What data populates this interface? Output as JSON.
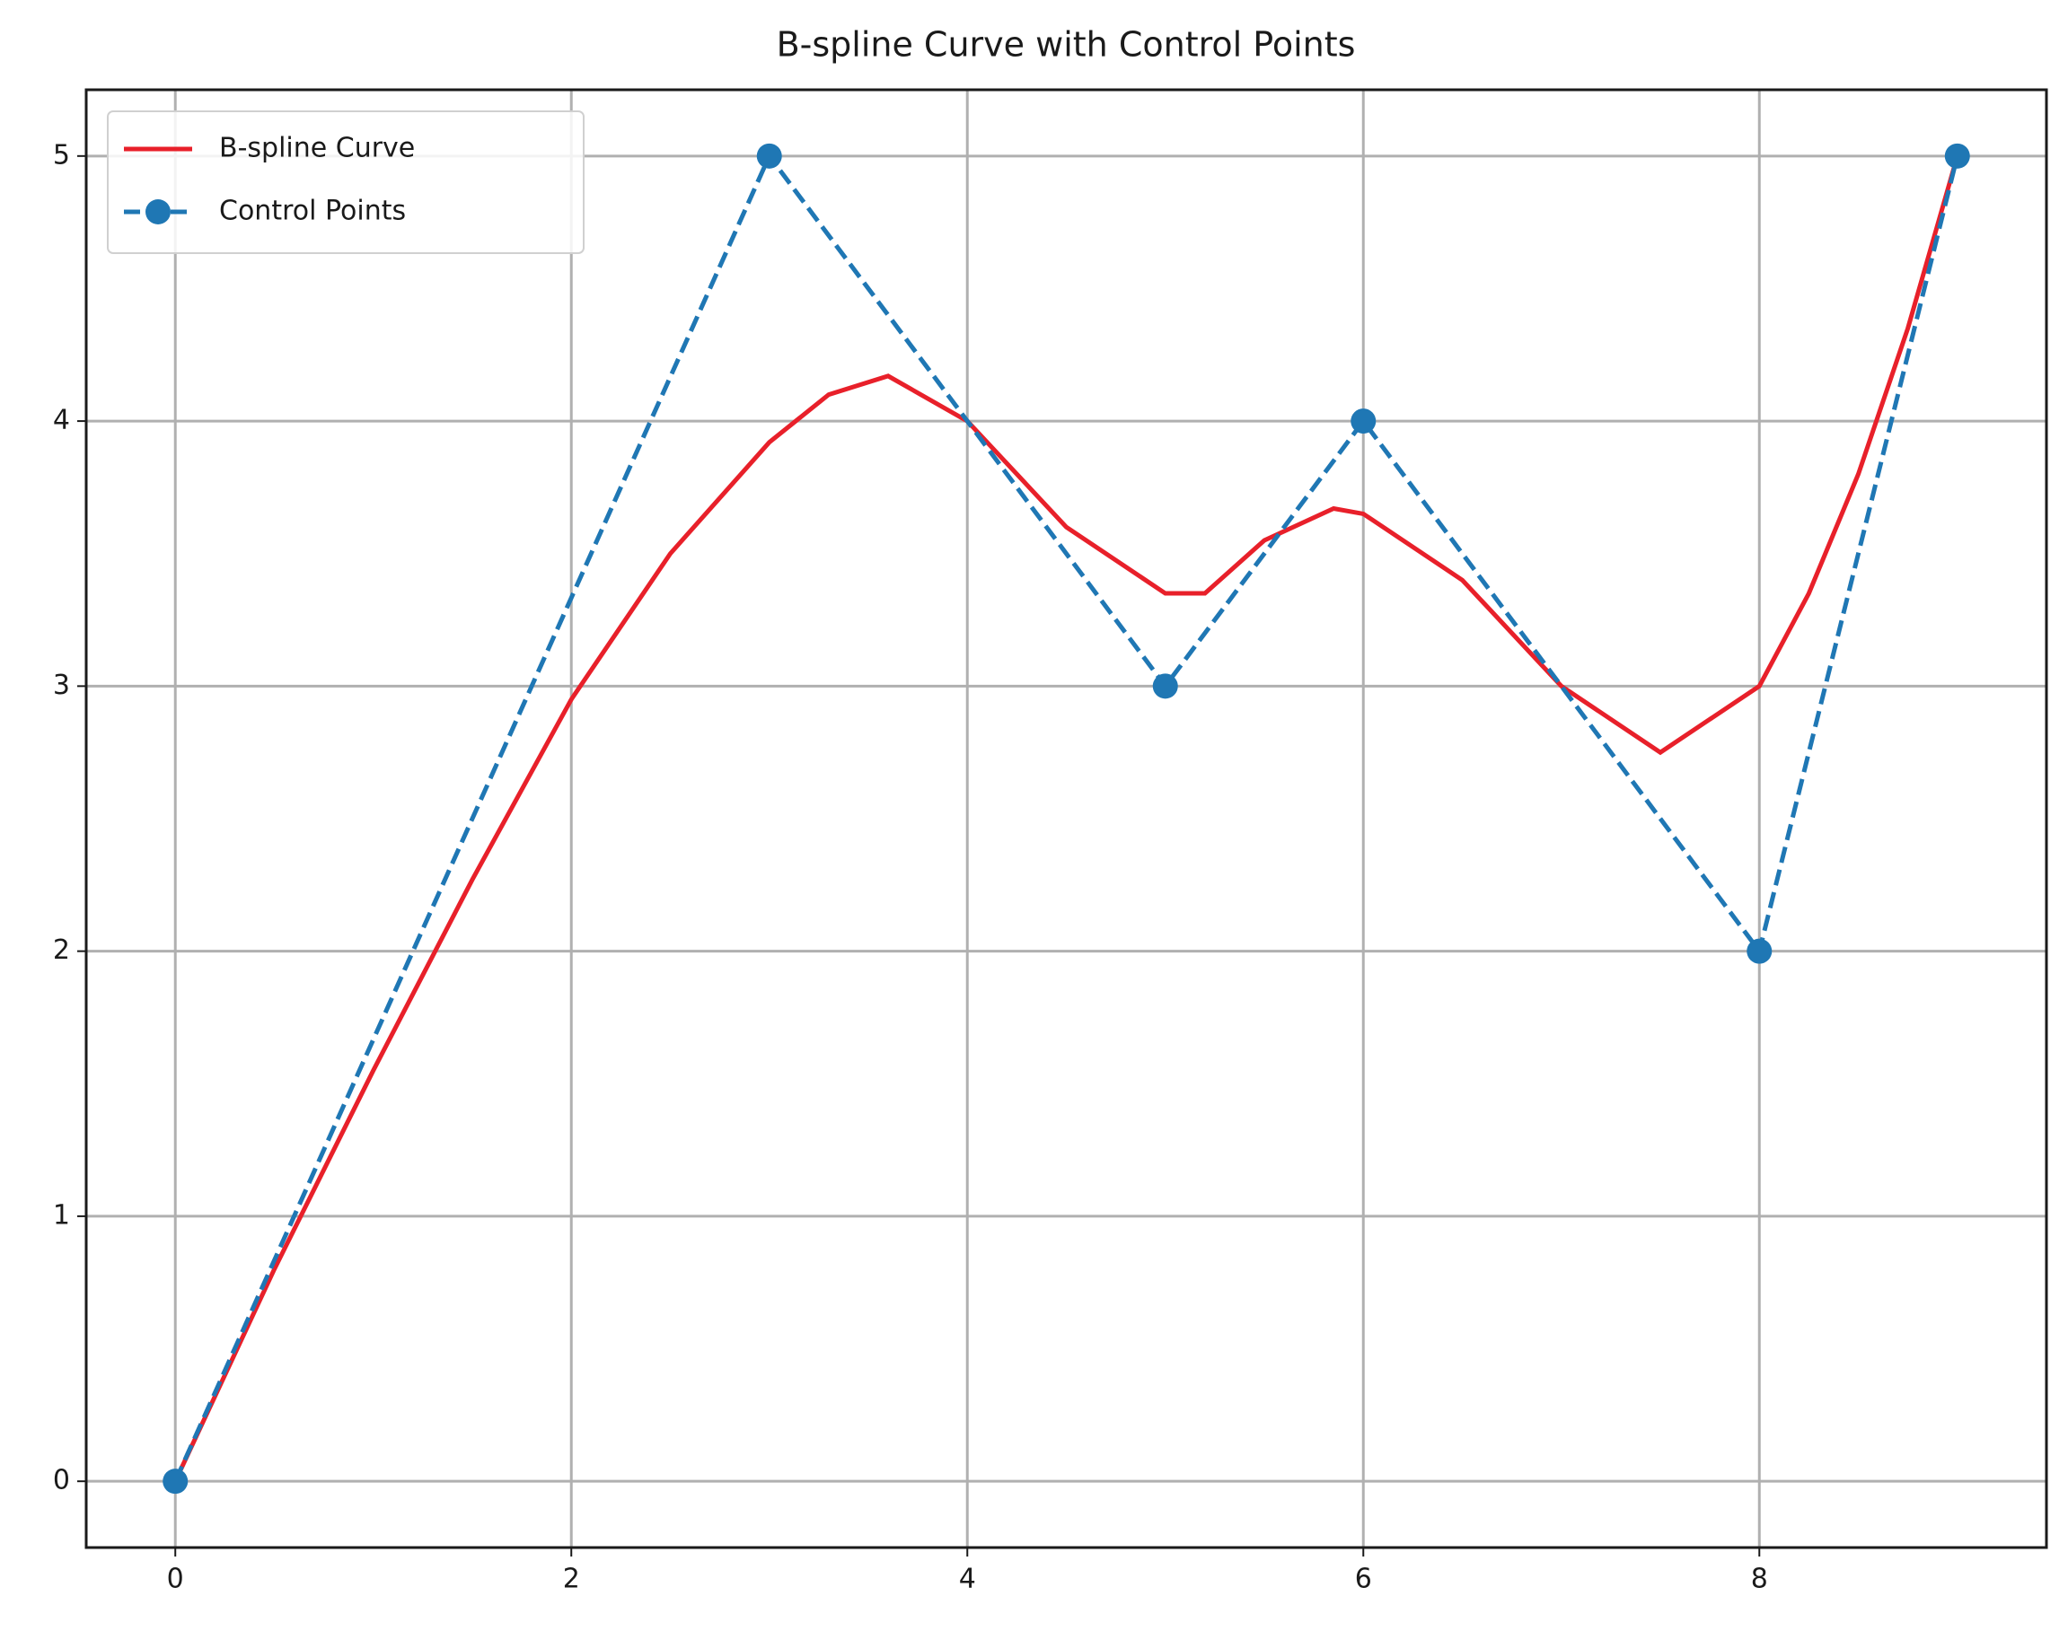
{
  "chart_data": {
    "type": "line",
    "title": "B-spline Curve with Control Points",
    "series": [
      {
        "name": "B-spline Curve",
        "color": "#e8202a",
        "linestyle": "solid",
        "marker": null,
        "x": [
          0,
          0.5,
          1,
          1.5,
          2,
          2.5,
          3,
          3.3,
          3.6,
          4,
          4.5,
          5,
          5.2,
          5.5,
          5.85,
          6,
          6.5,
          7,
          7.5,
          8,
          8.25,
          8.5,
          8.75,
          9
        ],
        "values": [
          0,
          0.8,
          1.55,
          2.27,
          2.95,
          3.5,
          3.92,
          4.1,
          4.17,
          4.0,
          3.6,
          3.35,
          3.35,
          3.55,
          3.67,
          3.65,
          3.4,
          3.0,
          2.75,
          3.0,
          3.35,
          3.8,
          4.35,
          5
        ]
      },
      {
        "name": "Control Points",
        "color": "#1f77b4",
        "linestyle": "dashed",
        "marker": "o",
        "x": [
          0,
          3,
          5,
          6,
          8,
          9
        ],
        "values": [
          0,
          5,
          3,
          4,
          2,
          5
        ]
      }
    ],
    "xlim": [
      -0.45,
      9.45
    ],
    "ylim": [
      -0.25,
      5.25
    ],
    "xticks": [
      0,
      2,
      4,
      6,
      8
    ],
    "yticks": [
      0,
      1,
      2,
      3,
      4,
      5
    ],
    "grid": true,
    "legend": "upper-left"
  }
}
